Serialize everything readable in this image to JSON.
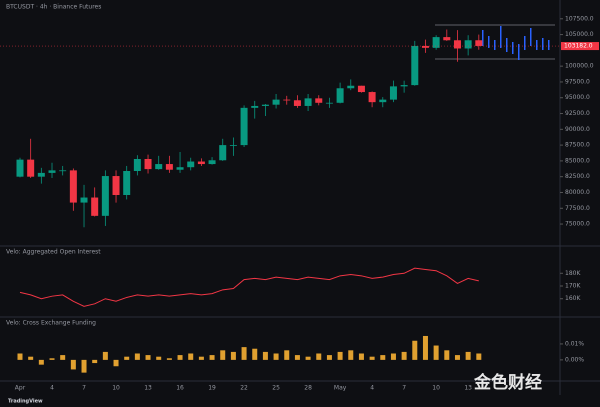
{
  "chart_data": [
    {
      "type": "candlestick",
      "title": "BTCUSDT · 4h · Binance Futures",
      "categories": [
        "Apr",
        null,
        null,
        "4",
        null,
        null,
        "7",
        null,
        null,
        "10",
        null,
        null,
        "13",
        null,
        null,
        "16",
        null,
        null,
        "19",
        null,
        null,
        "22",
        null,
        null,
        "25",
        null,
        null,
        "28",
        null,
        null,
        "May",
        null,
        null,
        "4",
        null,
        null,
        "7",
        null,
        null,
        "10",
        null,
        null,
        "13",
        null
      ],
      "open": [
        82500,
        85200,
        82500,
        83100,
        83500,
        83500,
        78400,
        79200,
        76300,
        82600,
        79600,
        83400,
        85300,
        83700,
        84500,
        83600,
        84000,
        84900,
        84500,
        85100,
        87500,
        87500,
        93400,
        93700,
        93900,
        94700,
        94600,
        93700,
        94900,
        94200,
        94200,
        96500,
        96900,
        95900,
        94300,
        94700,
        96800,
        97000,
        103200,
        102900,
        104600,
        104100,
        102800,
        104100
      ],
      "high": [
        85500,
        88500,
        83900,
        84700,
        84200,
        83800,
        81200,
        80800,
        83500,
        83500,
        84200,
        85900,
        86000,
        85800,
        85800,
        86400,
        85500,
        85400,
        85600,
        88500,
        88700,
        93800,
        94500,
        94000,
        95600,
        95300,
        95400,
        95600,
        95400,
        95000,
        97400,
        97900,
        96900,
        96000,
        95100,
        97700,
        97700,
        104000,
        104200,
        104900,
        105800,
        105700,
        104900,
        105000
      ],
      "low": [
        82400,
        82300,
        81400,
        82300,
        82700,
        77100,
        74500,
        76200,
        74700,
        78400,
        78900,
        82700,
        83000,
        83600,
        83100,
        83100,
        83500,
        84200,
        84400,
        85000,
        85800,
        87200,
        91700,
        92100,
        93300,
        93900,
        93400,
        92900,
        93800,
        93400,
        94100,
        96200,
        95800,
        93500,
        93500,
        94300,
        95800,
        96900,
        102100,
        102600,
        104000,
        100700,
        101700,
        102600
      ],
      "close": [
        85200,
        82500,
        83100,
        83500,
        83500,
        78400,
        79200,
        76300,
        82600,
        79600,
        83400,
        85300,
        83700,
        84500,
        83600,
        84000,
        84900,
        84500,
        85100,
        87500,
        87500,
        93400,
        93700,
        93900,
        94700,
        94600,
        93700,
        94900,
        94200,
        94200,
        96500,
        96900,
        95900,
        94300,
        94700,
        96800,
        97000,
        103200,
        102900,
        104600,
        104100,
        102800,
        104100,
        103200
      ],
      "up_color": "#089981",
      "down_color": "#f23645",
      "ylim": [
        72000,
        110000
      ],
      "yticks": [
        {
          "value": 75000,
          "label": "75000.0"
        },
        {
          "value": 77500,
          "label": "77500.0"
        },
        {
          "value": 80000,
          "label": "80000.0"
        },
        {
          "value": 82500,
          "label": "82500.0"
        },
        {
          "value": 85000,
          "label": "85000.0"
        },
        {
          "value": 87500,
          "label": "87500.0"
        },
        {
          "value": 90000,
          "label": "90000.0"
        },
        {
          "value": 92500,
          "label": "92500.0"
        },
        {
          "value": 95000,
          "label": "95000.0"
        },
        {
          "value": 97500,
          "label": "97500.0"
        },
        {
          "value": 100000,
          "label": "100000.0"
        },
        {
          "value": 105000,
          "label": "105000.0"
        },
        {
          "value": 107500,
          "label": "107500.0"
        }
      ],
      "current_price": {
        "value": 103182,
        "label": "103182.0"
      }
    },
    {
      "type": "line",
      "title": "Velo: Aggregated Open Interest",
      "values": [
        165,
        163,
        160,
        162,
        163,
        158,
        154,
        156,
        160,
        158,
        161,
        163,
        162,
        163,
        162,
        163,
        164,
        163,
        164,
        167,
        168,
        175,
        176,
        175,
        177,
        176,
        175,
        177,
        176,
        175,
        178,
        179,
        178,
        176,
        177,
        179,
        180,
        184,
        183,
        182,
        178,
        172,
        176,
        174
      ],
      "color": "#f23645",
      "ylim": [
        148,
        192
      ],
      "yticks": [
        {
          "value": 160,
          "label": "160K"
        },
        {
          "value": 170,
          "label": "170K"
        },
        {
          "value": 180,
          "label": "180K"
        }
      ]
    },
    {
      "type": "bar",
      "title": "Velo: Cross Exchange Funding",
      "values": [
        0.004,
        0.002,
        -0.003,
        0.001,
        0.003,
        -0.006,
        -0.008,
        -0.002,
        0.005,
        -0.004,
        0.002,
        0.004,
        0.003,
        0.002,
        0.001,
        0.003,
        0.004,
        0.002,
        0.003,
        0.006,
        0.005,
        0.008,
        0.007,
        0.005,
        0.004,
        0.006,
        0.003,
        0.002,
        0.004,
        0.003,
        0.005,
        0.006,
        0.004,
        0.002,
        0.003,
        0.004,
        0.005,
        0.012,
        0.015,
        0.009,
        0.006,
        0.003,
        0.005,
        0.004
      ],
      "color": "#e0a030",
      "ylim": [
        -0.012,
        0.02
      ],
      "yticks": [
        {
          "value": 0,
          "label": "0.00%"
        },
        {
          "value": 0.01,
          "label": "0.01%"
        }
      ]
    }
  ],
  "branding": {
    "logo": "TradingView",
    "watermark": "金色财经"
  }
}
